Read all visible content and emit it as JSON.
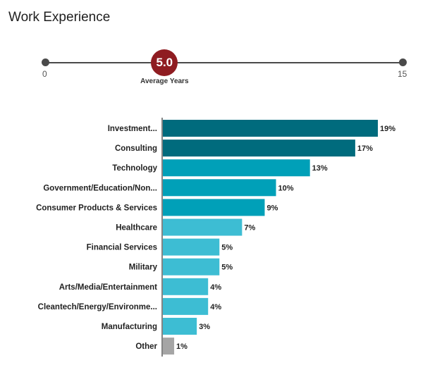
{
  "title": "Work Experience",
  "slider": {
    "min": "0",
    "max": "15",
    "value": "5.0",
    "value_number": 5.0,
    "range": [
      0,
      15
    ],
    "label": "Average Years",
    "marker_color": "#8f1c21"
  },
  "chart_data": {
    "type": "bar",
    "orientation": "horizontal",
    "categories": [
      "Investment...",
      "Consulting",
      "Technology",
      "Government/Education/Non...",
      "Consumer Products & Services",
      "Healthcare",
      "Financial Services",
      "Military",
      "Arts/Media/Entertainment",
      "Cleantech/Energy/Environme...",
      "Manufacturing",
      "Other"
    ],
    "values": [
      19,
      17,
      13,
      10,
      9,
      7,
      5,
      5,
      4,
      4,
      3,
      1
    ],
    "value_labels": [
      "19%",
      "17%",
      "13%",
      "10%",
      "9%",
      "7%",
      "5%",
      "5%",
      "4%",
      "4%",
      "3%",
      "1%"
    ],
    "colors": [
      "#006b7d",
      "#006b7d",
      "#00a0b8",
      "#00a0b8",
      "#00a0b8",
      "#3dbdd3",
      "#3dbdd3",
      "#3dbdd3",
      "#3dbdd3",
      "#3dbdd3",
      "#3dbdd3",
      "#a5a5a5"
    ],
    "xlim": [
      0,
      19
    ],
    "grid": false
  }
}
